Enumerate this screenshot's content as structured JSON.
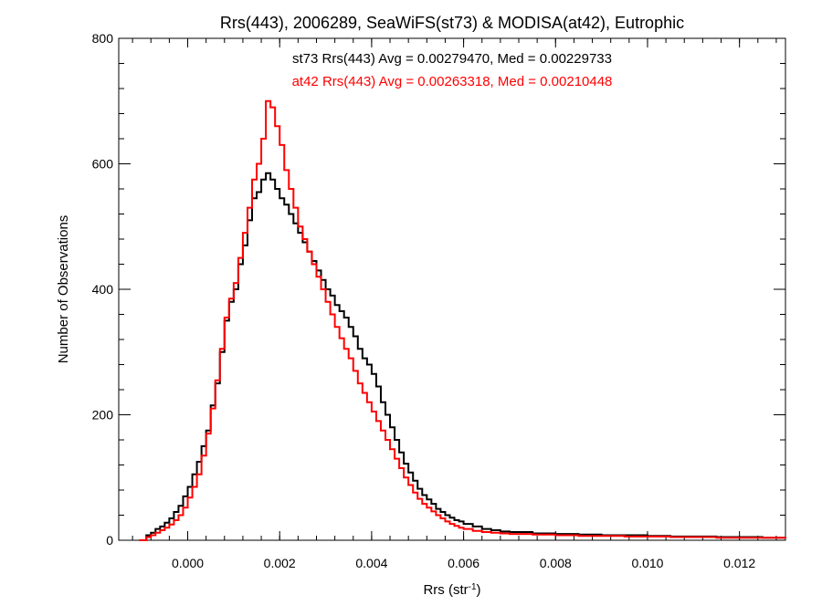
{
  "chart_data": {
    "type": "line",
    "title": "Rrs(443), 2006289, SeaWiFS(st73) & MODISA(at42), Eutrophic",
    "xlabel_main": "Rrs (str",
    "xlabel_sup": "-1",
    "xlabel_end": ")",
    "ylabel": "Number of Observations",
    "xlim": [
      -0.0015,
      0.013
    ],
    "ylim": [
      0,
      800
    ],
    "x_ticks": [
      {
        "value": 0.0,
        "label": "0.000"
      },
      {
        "value": 0.002,
        "label": "0.002"
      },
      {
        "value": 0.004,
        "label": "0.004"
      },
      {
        "value": 0.006,
        "label": "0.006"
      },
      {
        "value": 0.008,
        "label": "0.008"
      },
      {
        "value": 0.01,
        "label": "0.010"
      },
      {
        "value": 0.012,
        "label": "0.012"
      }
    ],
    "y_ticks": [
      {
        "value": 0,
        "label": "0"
      },
      {
        "value": 200,
        "label": "200"
      },
      {
        "value": 400,
        "label": "400"
      },
      {
        "value": 600,
        "label": "600"
      },
      {
        "value": 800,
        "label": "800"
      }
    ],
    "annotations": [
      {
        "text": "st73 Rrs(443) Avg = 0.00279470, Med = 0.00229733",
        "color": "#000000"
      },
      {
        "text": "at42 Rrs(443) Avg = 0.00263318, Med = 0.00210448",
        "color": "#ff0000"
      }
    ],
    "series": [
      {
        "color": "#000000",
        "points": [
          [
            -0.00105,
            0
          ],
          [
            -0.0009,
            8
          ],
          [
            -0.0008,
            12
          ],
          [
            -0.0007,
            18
          ],
          [
            -0.0006,
            22
          ],
          [
            -0.0005,
            28
          ],
          [
            -0.0004,
            35
          ],
          [
            -0.0003,
            45
          ],
          [
            -0.0002,
            55
          ],
          [
            -0.0001,
            70
          ],
          [
            0.0,
            85
          ],
          [
            0.0001,
            105
          ],
          [
            0.0002,
            125
          ],
          [
            0.0003,
            150
          ],
          [
            0.0004,
            175
          ],
          [
            0.0005,
            215
          ],
          [
            0.0006,
            250
          ],
          [
            0.0007,
            300
          ],
          [
            0.0008,
            350
          ],
          [
            0.0009,
            380
          ],
          [
            0.001,
            400
          ],
          [
            0.0011,
            440
          ],
          [
            0.0012,
            470
          ],
          [
            0.0013,
            510
          ],
          [
            0.0014,
            545
          ],
          [
            0.0015,
            555
          ],
          [
            0.0016,
            575
          ],
          [
            0.0017,
            585
          ],
          [
            0.0018,
            575
          ],
          [
            0.0019,
            560
          ],
          [
            0.002,
            545
          ],
          [
            0.0021,
            535
          ],
          [
            0.0022,
            520
          ],
          [
            0.0023,
            505
          ],
          [
            0.0024,
            490
          ],
          [
            0.0025,
            475
          ],
          [
            0.0026,
            460
          ],
          [
            0.0027,
            445
          ],
          [
            0.0028,
            430
          ],
          [
            0.0029,
            415
          ],
          [
            0.003,
            400
          ],
          [
            0.0031,
            390
          ],
          [
            0.0032,
            375
          ],
          [
            0.0033,
            365
          ],
          [
            0.0034,
            355
          ],
          [
            0.0035,
            340
          ],
          [
            0.0036,
            325
          ],
          [
            0.0037,
            305
          ],
          [
            0.0038,
            290
          ],
          [
            0.0039,
            280
          ],
          [
            0.004,
            265
          ],
          [
            0.0041,
            245
          ],
          [
            0.0042,
            220
          ],
          [
            0.0043,
            200
          ],
          [
            0.0044,
            180
          ],
          [
            0.0045,
            160
          ],
          [
            0.0046,
            140
          ],
          [
            0.0047,
            122
          ],
          [
            0.0048,
            108
          ],
          [
            0.0049,
            95
          ],
          [
            0.005,
            82
          ],
          [
            0.0051,
            72
          ],
          [
            0.0052,
            65
          ],
          [
            0.0053,
            58
          ],
          [
            0.0054,
            50
          ],
          [
            0.0055,
            45
          ],
          [
            0.0056,
            40
          ],
          [
            0.0057,
            36
          ],
          [
            0.0058,
            32
          ],
          [
            0.0059,
            30
          ],
          [
            0.006,
            26
          ],
          [
            0.0062,
            22
          ],
          [
            0.0064,
            18
          ],
          [
            0.0066,
            16
          ],
          [
            0.0068,
            14
          ],
          [
            0.007,
            13
          ],
          [
            0.0075,
            11
          ],
          [
            0.008,
            10
          ],
          [
            0.0085,
            9
          ],
          [
            0.009,
            8
          ],
          [
            0.0095,
            8
          ],
          [
            0.01,
            7
          ],
          [
            0.0105,
            6
          ],
          [
            0.011,
            6
          ],
          [
            0.0115,
            5
          ],
          [
            0.012,
            5
          ],
          [
            0.0125,
            4
          ],
          [
            0.013,
            4
          ]
        ]
      },
      {
        "color": "#ff0000",
        "points": [
          [
            -0.00105,
            0
          ],
          [
            -0.0009,
            5
          ],
          [
            -0.0008,
            8
          ],
          [
            -0.0007,
            12
          ],
          [
            -0.0006,
            16
          ],
          [
            -0.0005,
            20
          ],
          [
            -0.0004,
            25
          ],
          [
            -0.0003,
            32
          ],
          [
            -0.0002,
            40
          ],
          [
            -0.0001,
            52
          ],
          [
            0.0,
            68
          ],
          [
            0.0001,
            85
          ],
          [
            0.0002,
            105
          ],
          [
            0.0003,
            135
          ],
          [
            0.0004,
            170
          ],
          [
            0.0005,
            210
          ],
          [
            0.0006,
            255
          ],
          [
            0.0007,
            305
          ],
          [
            0.0008,
            355
          ],
          [
            0.0009,
            385
          ],
          [
            0.001,
            410
          ],
          [
            0.0011,
            450
          ],
          [
            0.0012,
            490
          ],
          [
            0.0013,
            530
          ],
          [
            0.0014,
            575
          ],
          [
            0.0015,
            600
          ],
          [
            0.0016,
            640
          ],
          [
            0.0017,
            700
          ],
          [
            0.0018,
            690
          ],
          [
            0.0019,
            660
          ],
          [
            0.002,
            630
          ],
          [
            0.0021,
            590
          ],
          [
            0.0022,
            560
          ],
          [
            0.0023,
            530
          ],
          [
            0.0024,
            500
          ],
          [
            0.0025,
            480
          ],
          [
            0.0026,
            460
          ],
          [
            0.0027,
            440
          ],
          [
            0.0028,
            420
          ],
          [
            0.0029,
            400
          ],
          [
            0.003,
            380
          ],
          [
            0.0031,
            360
          ],
          [
            0.0032,
            340
          ],
          [
            0.0033,
            322
          ],
          [
            0.0034,
            305
          ],
          [
            0.0035,
            290
          ],
          [
            0.0036,
            270
          ],
          [
            0.0037,
            250
          ],
          [
            0.0038,
            235
          ],
          [
            0.0039,
            220
          ],
          [
            0.004,
            205
          ],
          [
            0.0041,
            190
          ],
          [
            0.0042,
            175
          ],
          [
            0.0043,
            160
          ],
          [
            0.0044,
            145
          ],
          [
            0.0045,
            130
          ],
          [
            0.0046,
            115
          ],
          [
            0.0047,
            100
          ],
          [
            0.0048,
            88
          ],
          [
            0.0049,
            76
          ],
          [
            0.005,
            66
          ],
          [
            0.0051,
            58
          ],
          [
            0.0052,
            52
          ],
          [
            0.0053,
            46
          ],
          [
            0.0054,
            40
          ],
          [
            0.0055,
            35
          ],
          [
            0.0056,
            30
          ],
          [
            0.0057,
            26
          ],
          [
            0.0058,
            23
          ],
          [
            0.0059,
            20
          ],
          [
            0.006,
            18
          ],
          [
            0.0062,
            15
          ],
          [
            0.0064,
            13
          ],
          [
            0.0066,
            12
          ],
          [
            0.0068,
            11
          ],
          [
            0.007,
            10
          ],
          [
            0.0075,
            9
          ],
          [
            0.008,
            8
          ],
          [
            0.0085,
            7
          ],
          [
            0.009,
            7
          ],
          [
            0.0095,
            6
          ],
          [
            0.01,
            6
          ],
          [
            0.0105,
            5
          ],
          [
            0.011,
            5
          ],
          [
            0.0115,
            4
          ],
          [
            0.012,
            4
          ],
          [
            0.0125,
            4
          ],
          [
            0.013,
            3
          ]
        ]
      }
    ],
    "grid": false,
    "legend": "none"
  }
}
